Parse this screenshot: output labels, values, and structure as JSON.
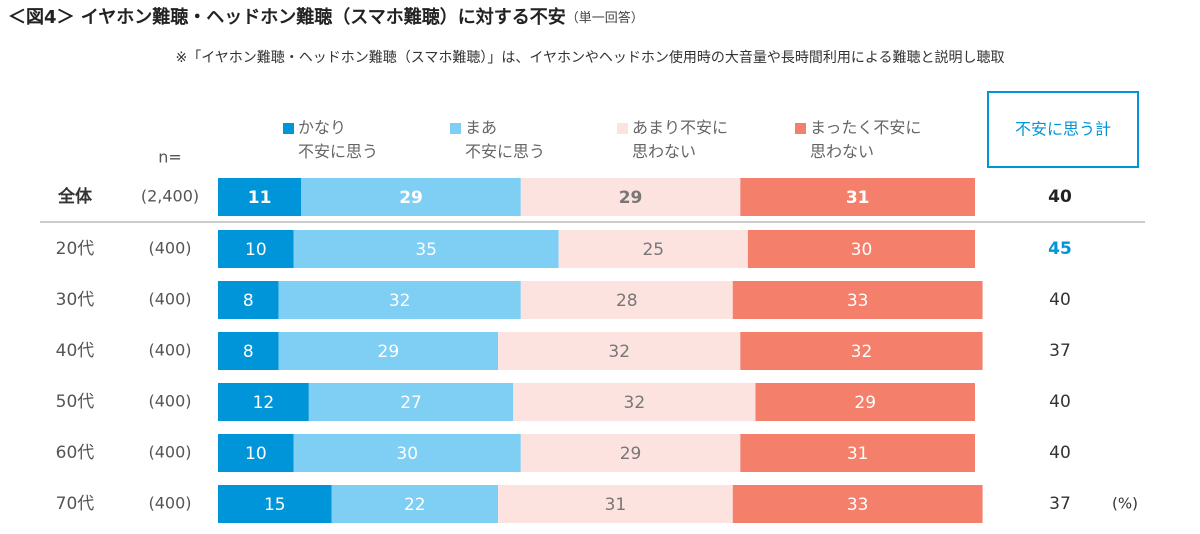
{
  "chart_data": {
    "type": "stacked-bar-100",
    "title": "＜図4＞ イヤホン難聴・ヘッドホン難聴（スマホ難聴）に対する不安",
    "title_note": "（単一回答）",
    "subtitle": "※「イヤホン難聴・ヘッドホン難聴（スマホ難聴）」は、イヤホンやヘッドホン使用時の大音量や長時間利用による難聴と説明し聴取",
    "n_header": "n=",
    "categories": [
      "全体",
      "20代",
      "30代",
      "40代",
      "50代",
      "60代",
      "70代"
    ],
    "n_labels": [
      "(2,400)",
      "(400)",
      "(400)",
      "(400)",
      "(400)",
      "(400)",
      "(400)"
    ],
    "xlim": [
      0,
      100
    ],
    "series": [
      {
        "name": "かなり\n不安に思う",
        "color": "#0095d9",
        "label_color": "#ffffff",
        "values": [
          11,
          10,
          8,
          8,
          12,
          10,
          15
        ]
      },
      {
        "name": "まあ\n不安に思う",
        "color": "#7fcef4",
        "label_color": "#ffffff",
        "values": [
          29,
          35,
          32,
          29,
          27,
          30,
          22
        ]
      },
      {
        "name": "あまり不安に\n思わない",
        "color": "#fde3df",
        "label_color": "#777777",
        "values": [
          29,
          25,
          28,
          32,
          32,
          29,
          31
        ]
      },
      {
        "name": "まったく不安に\n思わない",
        "color": "#f47f6b",
        "label_color": "#ffffff",
        "values": [
          31,
          30,
          33,
          32,
          29,
          31,
          33
        ]
      }
    ],
    "totals_header": "不安に思う計",
    "totals": [
      40,
      45,
      40,
      37,
      40,
      40,
      37
    ],
    "totals_colors": [
      "#222222",
      "#0095d9",
      "#333333",
      "#333333",
      "#333333",
      "#333333",
      "#333333"
    ],
    "unit": "(%)"
  }
}
